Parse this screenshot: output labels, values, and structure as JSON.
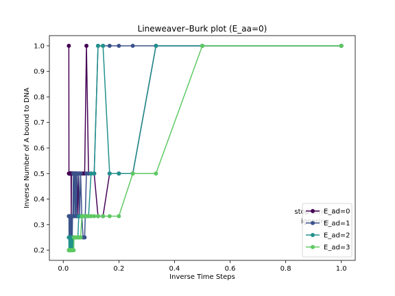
{
  "chart_data": {
    "type": "line",
    "title": "Lineweaver–Burk plot (E_aa=0)",
    "xlabel": "Inverse Time Steps",
    "ylabel": "Inverse Number of A bound to DNA",
    "xlim": [
      -0.05,
      1.05
    ],
    "ylim": [
      0.16,
      1.04
    ],
    "xticks": [
      0.0,
      0.2,
      0.4,
      0.6,
      0.8,
      1.0
    ],
    "xtick_labels": [
      "0.0",
      "0.2",
      "0.4",
      "0.6",
      "0.8",
      "1.0"
    ],
    "yticks": [
      0.2,
      0.3,
      0.4,
      0.5,
      0.6,
      0.7,
      0.8,
      0.9,
      1.0
    ],
    "ytick_labels": [
      "0.2",
      "0.3",
      "0.4",
      "0.5",
      "0.6",
      "0.7",
      "0.8",
      "0.9",
      "1.0"
    ],
    "grid": false,
    "legend_position": "lower-right",
    "annotations": [
      "stop time: 50",
      "ignoring"
    ],
    "series": [
      {
        "name": "E_ad=0",
        "color": "#440154",
        "x": [
          0.02,
          0.0204,
          0.0208,
          0.0213,
          0.0217,
          0.0222,
          0.0227,
          0.0233,
          0.0238,
          0.0244,
          0.025,
          0.0256,
          0.0263,
          0.027,
          0.0278,
          0.0286,
          0.0294,
          0.0303,
          0.0312,
          0.0323,
          0.0333,
          0.0345,
          0.0357,
          0.037,
          0.0385,
          0.04,
          0.0417,
          0.0435,
          0.0455,
          0.0476,
          0.05,
          0.0526,
          0.0556,
          0.0588,
          0.0625,
          0.0667,
          0.0714,
          0.0769,
          0.0833,
          0.0909,
          0.1,
          0.1111,
          0.125,
          0.1429,
          0.1667,
          0.2,
          0.25,
          0.3333,
          0.5,
          1.0
        ],
        "y": [
          1.0,
          0.5,
          0.5,
          0.5,
          0.5,
          0.5,
          0.5,
          0.5,
          0.5,
          0.5,
          0.5,
          0.5,
          0.5,
          0.5,
          0.5,
          0.333,
          0.5,
          0.5,
          0.5,
          0.5,
          0.5,
          0.5,
          0.5,
          0.5,
          0.5,
          0.5,
          0.5,
          0.5,
          0.5,
          0.5,
          0.5,
          0.333,
          0.5,
          0.5,
          0.5,
          0.5,
          0.5,
          0.5,
          1.0,
          0.5,
          0.5,
          0.5,
          0.333,
          0.333,
          0.5,
          0.5,
          0.5,
          1.0,
          1.0,
          1.0
        ]
      },
      {
        "name": "E_ad=1",
        "color": "#3b528b",
        "x": [
          0.02,
          0.0204,
          0.0208,
          0.0213,
          0.0217,
          0.0222,
          0.0227,
          0.0233,
          0.0238,
          0.0244,
          0.025,
          0.0256,
          0.0263,
          0.027,
          0.0278,
          0.0286,
          0.0294,
          0.0303,
          0.0312,
          0.0323,
          0.0333,
          0.0345,
          0.0357,
          0.037,
          0.0385,
          0.04,
          0.0417,
          0.0435,
          0.0455,
          0.0476,
          0.05,
          0.0526,
          0.0556,
          0.0588,
          0.0625,
          0.0667,
          0.0714,
          0.0769,
          0.0833,
          0.0909,
          0.1,
          0.1111,
          0.125,
          0.1429,
          0.1667,
          0.2,
          0.25,
          0.3333,
          0.5,
          1.0
        ],
        "y": [
          0.333,
          0.333,
          0.25,
          0.333,
          0.25,
          0.333,
          0.25,
          0.333,
          0.25,
          0.333,
          0.333,
          0.25,
          0.333,
          0.333,
          0.25,
          0.333,
          0.25,
          0.333,
          0.333,
          0.25,
          0.333,
          0.333,
          0.5,
          0.333,
          0.333,
          0.5,
          0.5,
          0.333,
          0.5,
          0.333,
          0.5,
          0.5,
          0.5,
          0.333,
          0.5,
          0.333,
          0.25,
          0.25,
          0.5,
          0.5,
          0.5,
          0.5,
          1.0,
          1.0,
          1.0,
          1.0,
          1.0,
          1.0,
          1.0,
          1.0
        ]
      },
      {
        "name": "E_ad=2",
        "color": "#21918c",
        "x": [
          0.02,
          0.0204,
          0.0208,
          0.0213,
          0.0217,
          0.0222,
          0.0227,
          0.0233,
          0.0238,
          0.0244,
          0.025,
          0.0256,
          0.0263,
          0.027,
          0.0278,
          0.0286,
          0.0294,
          0.0303,
          0.0312,
          0.0323,
          0.0333,
          0.0345,
          0.0357,
          0.037,
          0.0385,
          0.04,
          0.0417,
          0.0435,
          0.0455,
          0.0476,
          0.05,
          0.0526,
          0.0556,
          0.0588,
          0.0625,
          0.0667,
          0.0714,
          0.0769,
          0.0833,
          0.0909,
          0.1,
          0.1111,
          0.125,
          0.1429,
          0.1667,
          0.2,
          0.25,
          0.3333,
          0.5,
          1.0
        ],
        "y": [
          0.25,
          0.2,
          0.25,
          0.2,
          0.25,
          0.2,
          0.25,
          0.2,
          0.25,
          0.2,
          0.25,
          0.2,
          0.25,
          0.25,
          0.2,
          0.25,
          0.2,
          0.25,
          0.2,
          0.25,
          0.25,
          0.2,
          0.25,
          0.2,
          0.25,
          0.25,
          0.25,
          0.25,
          0.25,
          0.25,
          0.25,
          0.25,
          0.333,
          0.333,
          0.333,
          0.333,
          0.333,
          0.333,
          0.333,
          0.333,
          0.5,
          0.5,
          1.0,
          1.0,
          0.5,
          0.5,
          0.5,
          1.0,
          1.0,
          1.0
        ]
      },
      {
        "name": "E_ad=3",
        "color": "#5ec962",
        "x": [
          0.02,
          0.0204,
          0.0208,
          0.0213,
          0.0217,
          0.0222,
          0.0227,
          0.0233,
          0.0238,
          0.0244,
          0.025,
          0.0256,
          0.0263,
          0.027,
          0.0278,
          0.0286,
          0.0294,
          0.0303,
          0.0312,
          0.0323,
          0.0333,
          0.0345,
          0.0357,
          0.037,
          0.0385,
          0.04,
          0.0417,
          0.0435,
          0.0455,
          0.0476,
          0.05,
          0.0526,
          0.0556,
          0.0588,
          0.0625,
          0.0667,
          0.0714,
          0.0769,
          0.0833,
          0.0909,
          0.1,
          0.1111,
          0.125,
          0.1429,
          0.1667,
          0.2,
          0.25,
          0.3333,
          0.5,
          1.0
        ],
        "y": [
          0.2,
          0.2,
          0.2,
          0.2,
          0.2,
          0.2,
          0.2,
          0.2,
          0.2,
          0.2,
          0.2,
          0.2,
          0.2,
          0.2,
          0.2,
          0.2,
          0.2,
          0.2,
          0.2,
          0.2,
          0.2,
          0.2,
          0.2,
          0.2,
          0.25,
          0.25,
          0.25,
          0.25,
          0.25,
          0.25,
          0.25,
          0.25,
          0.25,
          0.25,
          0.25,
          0.333,
          0.333,
          0.333,
          0.333,
          0.333,
          0.333,
          0.333,
          0.333,
          0.333,
          0.333,
          0.333,
          0.5,
          0.5,
          1.0,
          1.0
        ]
      }
    ]
  }
}
